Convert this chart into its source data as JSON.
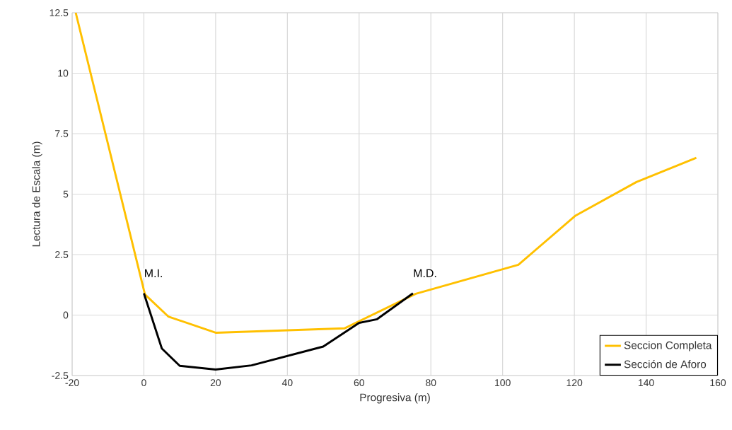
{
  "chart_data": {
    "type": "line",
    "xlabel": "Progresiva (m)",
    "ylabel": "Lectura de Escala (m)",
    "xlim": [
      -20,
      160
    ],
    "xticks": [
      -20,
      0,
      20,
      40,
      60,
      80,
      100,
      120,
      140,
      160
    ],
    "ylim": [
      -2.5,
      12.5
    ],
    "yticks": [
      -2.5,
      0,
      2.5,
      5,
      7.5,
      10,
      12.5
    ],
    "grid": true,
    "legend": "bottom right",
    "marker": "none",
    "line_style": "solid",
    "annotations": [
      {
        "text": "M.I.",
        "x": 0,
        "y": 0.9
      },
      {
        "text": "M.D.",
        "x": 75,
        "y": 0.9
      }
    ],
    "series": [
      {
        "name": "Seccion Completa",
        "color": "#ffc000",
        "x": [
          -19,
          0.3,
          6.8,
          20,
          55.9,
          75.8,
          104.4,
          120.2,
          137.3,
          154
        ],
        "values": [
          12.5,
          0.85,
          -0.06,
          -0.73,
          -0.55,
          0.88,
          2.08,
          4.1,
          5.5,
          6.5
        ]
      },
      {
        "name": "Sección de Aforo",
        "color": "#000000",
        "x": [
          0,
          5,
          10,
          20,
          30,
          50,
          60,
          65,
          75
        ],
        "values": [
          0.9,
          -1.38,
          -2.1,
          -2.25,
          -2.08,
          -1.3,
          -0.32,
          -0.17,
          0.9
        ]
      }
    ]
  }
}
